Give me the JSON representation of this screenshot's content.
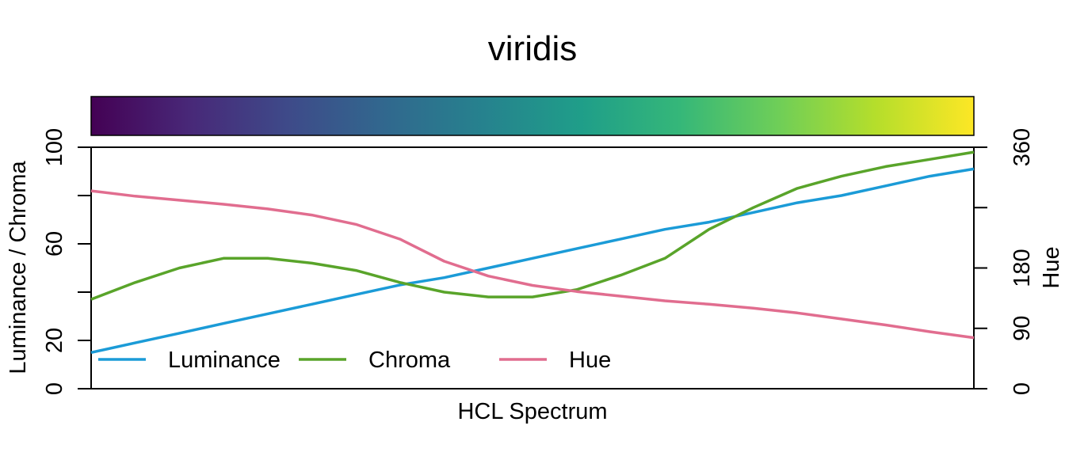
{
  "chart_data": {
    "type": "line",
    "title": "viridis",
    "xlabel": "HCL Spectrum",
    "ylabel_left": "Luminance / Chroma",
    "ylabel_right": "Hue",
    "ylim_left": [
      0,
      100
    ],
    "ylim_right": [
      0,
      360
    ],
    "yticks_left": [
      "0",
      "20",
      "60",
      "100"
    ],
    "yticks_left_minor": [
      40,
      80
    ],
    "yticks_right": [
      "0",
      "90",
      "180",
      "360"
    ],
    "yticks_right_minor": [
      270
    ],
    "x": [
      0,
      0.05,
      0.1,
      0.15,
      0.2,
      0.25,
      0.3,
      0.35,
      0.4,
      0.45,
      0.5,
      0.55,
      0.6,
      0.65,
      0.7,
      0.75,
      0.8,
      0.85,
      0.9,
      0.95,
      1.0
    ],
    "series": [
      {
        "name": "Luminance",
        "axis": "left",
        "color": "#1b9bd7",
        "values": [
          15,
          19,
          23,
          27,
          31,
          35,
          39,
          43,
          46,
          50,
          54,
          58,
          62,
          66,
          69,
          73,
          77,
          80,
          84,
          88,
          91
        ]
      },
      {
        "name": "Chroma",
        "axis": "left",
        "color": "#59a42a",
        "values": [
          37,
          44,
          50,
          54,
          54,
          52,
          49,
          44,
          40,
          38,
          38,
          41,
          47,
          54,
          66,
          75,
          83,
          88,
          92,
          95,
          98
        ]
      },
      {
        "name": "Hue",
        "axis": "right",
        "color": "#e16d8f",
        "values": [
          295,
          287,
          281,
          275,
          268,
          259,
          245,
          223,
          190,
          168,
          154,
          145,
          138,
          131,
          126,
          120,
          113,
          104,
          95,
          85,
          76
        ]
      }
    ],
    "legend": {
      "placement": "bottom-left",
      "entries": [
        "Luminance",
        "Chroma",
        "Hue"
      ]
    },
    "colorbar": {
      "name": "viridis",
      "stops": [
        "#440154",
        "#482878",
        "#3e4a89",
        "#31688e",
        "#26828e",
        "#1f9e89",
        "#35b779",
        "#6ece58",
        "#b5de2b",
        "#fde725"
      ]
    }
  }
}
